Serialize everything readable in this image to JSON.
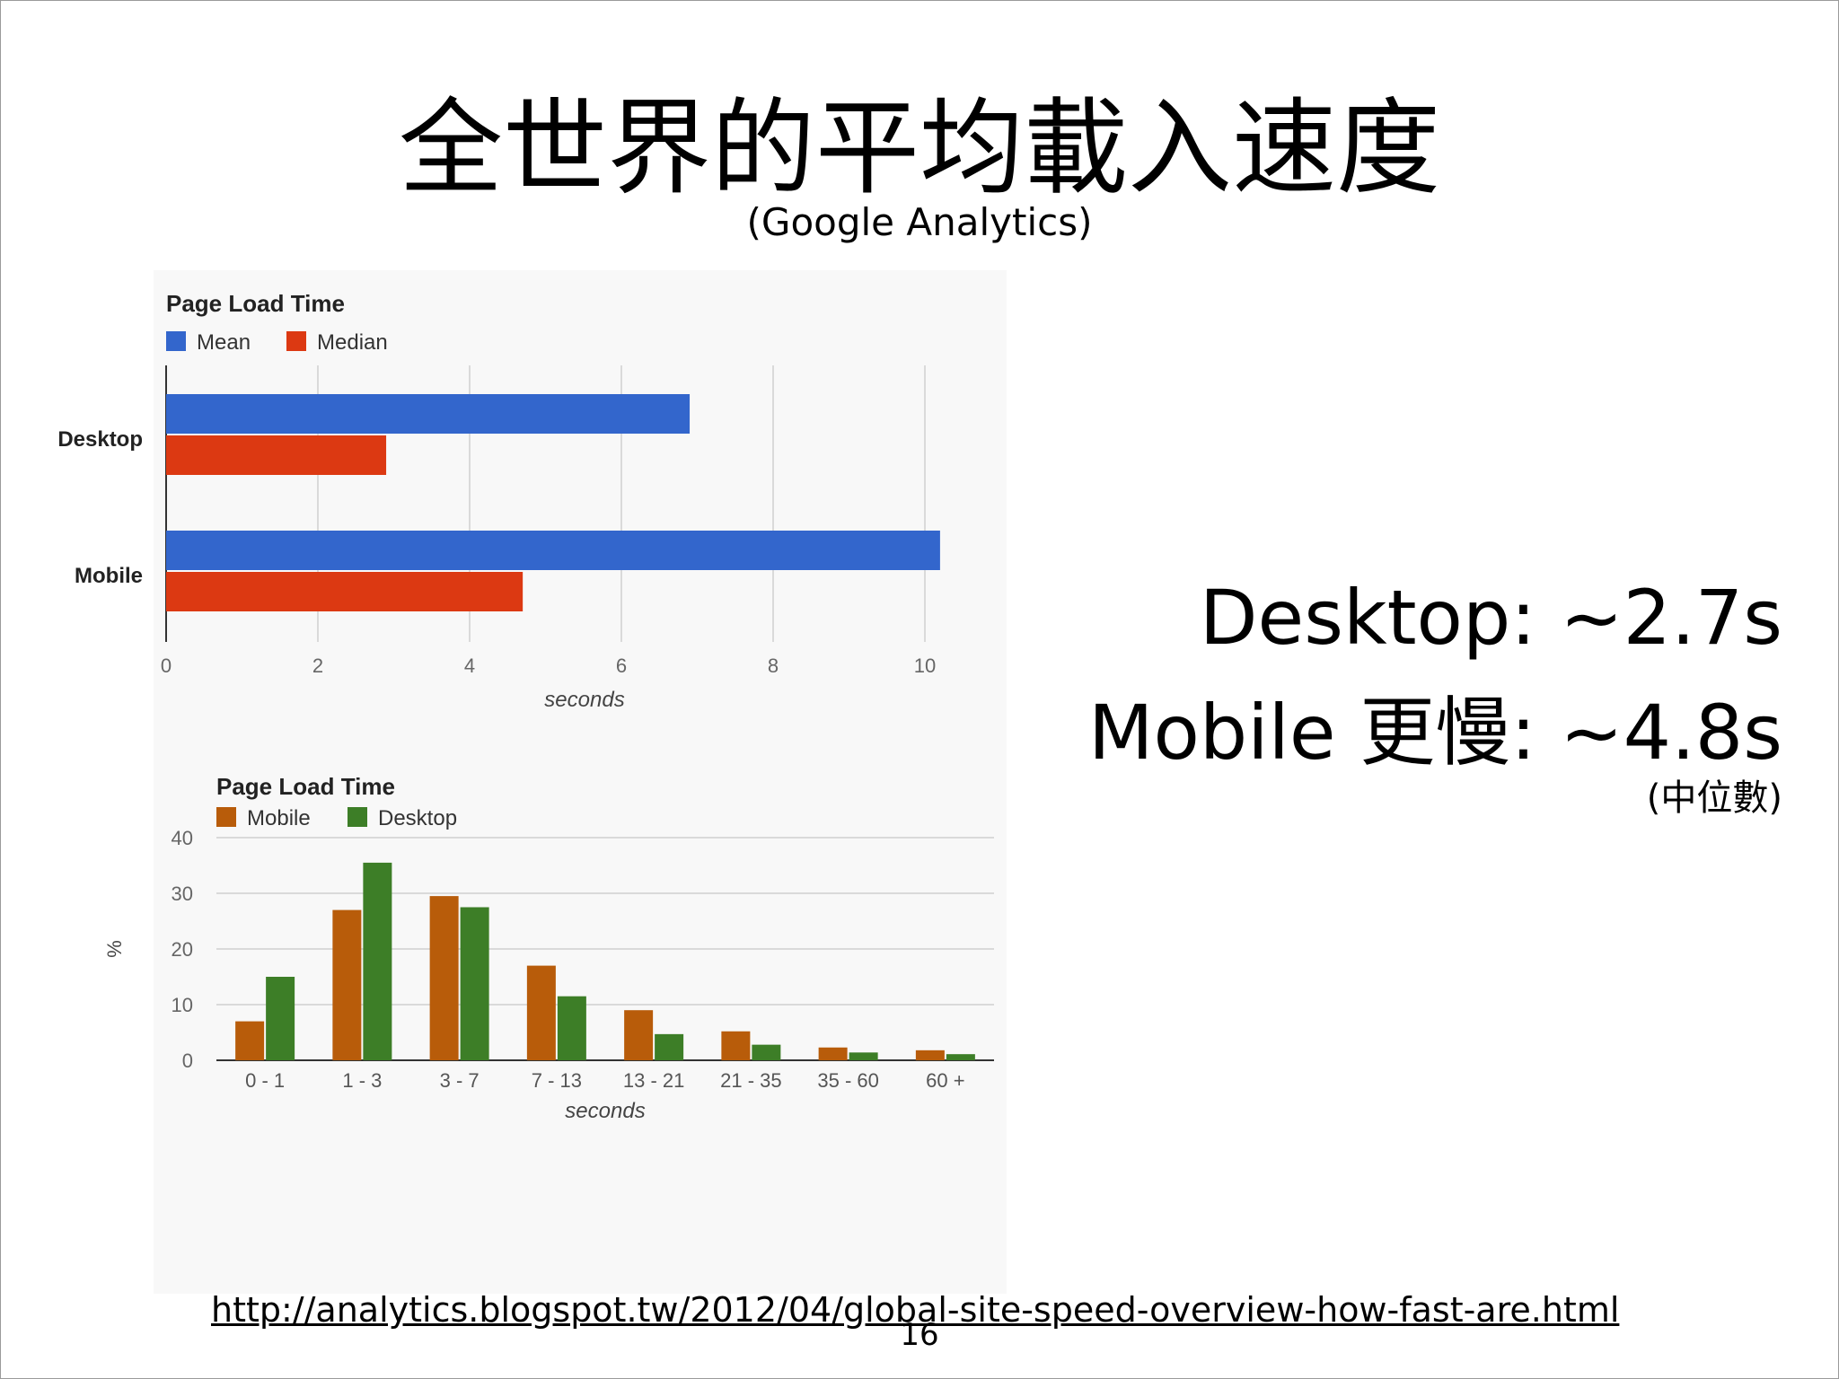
{
  "slide": {
    "title": "全世界的平均載入速度",
    "subtitle": "(Google Analytics)",
    "stats": {
      "desktop": "Desktop: ~2.7s",
      "mobile": "Mobile 更慢: ~4.8s",
      "note": "(中位數)"
    },
    "source_url": "http://analytics.blogspot.tw/2012/04/global-site-speed-overview-how-fast-are.html",
    "page_number": "16"
  },
  "chart_data": [
    {
      "type": "bar",
      "orientation": "horizontal",
      "title": "Page Load Time",
      "xlabel": "seconds",
      "ylabel": "",
      "categories": [
        "Desktop",
        "Mobile"
      ],
      "series": [
        {
          "name": "Mean",
          "color": "#3366cc",
          "values": [
            6.9,
            10.2
          ]
        },
        {
          "name": "Median",
          "color": "#dc3912",
          "values": [
            2.9,
            4.7
          ]
        }
      ],
      "xlim": [
        0,
        10.2
      ],
      "xticks": [
        "0",
        "2",
        "4",
        "6",
        "8",
        "10"
      ],
      "legend": "top-left",
      "grid": true
    },
    {
      "type": "bar",
      "orientation": "vertical",
      "title": "Page Load Time",
      "xlabel": "seconds",
      "ylabel": "%",
      "categories": [
        "0 - 1",
        "1 - 3",
        "3 - 7",
        "7 - 13",
        "13 - 21",
        "21 - 35",
        "35 - 60",
        "60 +"
      ],
      "series": [
        {
          "name": "Mobile",
          "color": "#b85c0a",
          "values": [
            7,
            27,
            29.5,
            17,
            9,
            5.2,
            2.3,
            1.8
          ]
        },
        {
          "name": "Desktop",
          "color": "#3d7e27",
          "values": [
            15,
            35.5,
            27.5,
            11.5,
            4.7,
            2.8,
            1.4,
            1.1
          ]
        }
      ],
      "ylim": [
        0,
        40
      ],
      "yticks": [
        "0",
        "10",
        "20",
        "30",
        "40"
      ],
      "legend": "top-left",
      "grid": true
    }
  ]
}
